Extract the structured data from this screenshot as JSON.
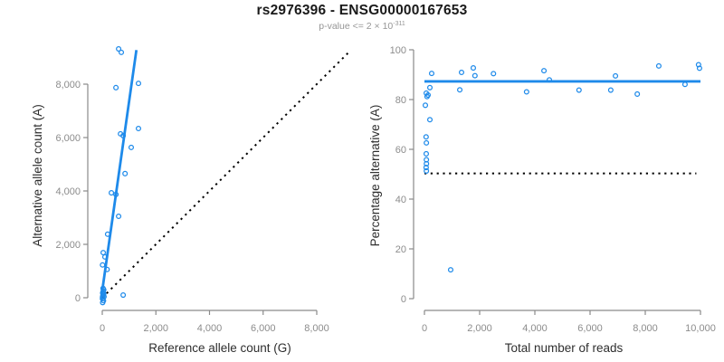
{
  "header": {
    "title": "rs2976396 - ENSG00000167653",
    "subtitle_main": "p-value <= 2 × 10",
    "subtitle_exponent": "-311"
  },
  "colors": {
    "accent_blue": "#1E8AEA",
    "reference_black": "#000000",
    "axis_gray": "#8a8a8a",
    "tick_label_gray": "#8c8c8c",
    "axis_title_dark": "#2e2e2e",
    "title_black": "#1a1a1a",
    "subtitle_gray": "#969696"
  },
  "chart_data": [
    {
      "id": "allele-counts",
      "type": "scatter",
      "xlabel": "Reference allele count (G)",
      "ylabel": "Alternative allele count (A)",
      "xlim": [
        0,
        8000
      ],
      "ylim": [
        0,
        8000
      ],
      "xticks": [
        0,
        2000,
        4000,
        6000,
        8000
      ],
      "xtick_labels": [
        "0",
        "2,000",
        "4,000",
        "6,000",
        "8,000"
      ],
      "yticks": [
        0,
        2000,
        4000,
        6000,
        8000
      ],
      "ytick_labels": [
        "0",
        "2,000",
        "4,000",
        "6,000",
        "8,000"
      ],
      "grid": false,
      "legend": "none",
      "points": [
        [
          610,
          9320
        ],
        [
          710,
          9190
        ],
        [
          510,
          7870
        ],
        [
          1350,
          8030
        ],
        [
          680,
          6140
        ],
        [
          780,
          6070
        ],
        [
          1350,
          6340
        ],
        [
          1080,
          5630
        ],
        [
          850,
          4650
        ],
        [
          340,
          3930
        ],
        [
          510,
          3870
        ],
        [
          610,
          3050
        ],
        [
          200,
          2380
        ],
        [
          35,
          1690
        ],
        [
          100,
          1530
        ],
        [
          10,
          1230
        ],
        [
          180,
          1060
        ],
        [
          780,
          100
        ],
        [
          10,
          20
        ],
        [
          25,
          70
        ],
        [
          45,
          120
        ],
        [
          15,
          180
        ],
        [
          35,
          240
        ],
        [
          55,
          300
        ],
        [
          20,
          -40
        ],
        [
          45,
          -110
        ],
        [
          65,
          40
        ],
        [
          30,
          350
        ],
        [
          55,
          160
        ],
        [
          15,
          -180
        ]
      ],
      "fit_line": {
        "style": "solid",
        "color_key": "accent_blue",
        "from": [
          -50,
          -85
        ],
        "to": [
          1273,
          9278
        ]
      },
      "identity_line": {
        "style": "dotted",
        "color_key": "reference_black",
        "from": [
          0,
          0
        ],
        "to": [
          9250,
          9250
        ]
      }
    },
    {
      "id": "percentage-alternative",
      "type": "scatter",
      "xlabel": "Total number of reads",
      "ylabel": "Percentage alternative (A)",
      "xlim": [
        0,
        10000
      ],
      "ylim": [
        0,
        100
      ],
      "xticks": [
        0,
        2000,
        4000,
        6000,
        8000,
        10000
      ],
      "xtick_labels": [
        "0",
        "2,000",
        "4,000",
        "6,000",
        "8,000",
        "10,000"
      ],
      "yticks": [
        0,
        20,
        40,
        60,
        80,
        100
      ],
      "ytick_labels": [
        "0",
        "20",
        "40",
        "60",
        "80",
        "100"
      ],
      "grid": false,
      "legend": "none",
      "points": [
        [
          262,
          90.5
        ],
        [
          197,
          84.8
        ],
        [
          66,
          82.6
        ],
        [
          131,
          81.8
        ],
        [
          95,
          81.2
        ],
        [
          33,
          77.7
        ],
        [
          197,
          71.9
        ],
        [
          60,
          65.0
        ],
        [
          70,
          62.6
        ],
        [
          65,
          58.2
        ],
        [
          70,
          55.8
        ],
        [
          72,
          54.2
        ],
        [
          62,
          52.7
        ],
        [
          70,
          51.3
        ],
        [
          950,
          11.6
        ],
        [
          1280,
          83.9
        ],
        [
          1344,
          90.9
        ],
        [
          1770,
          92.7
        ],
        [
          1830,
          89.6
        ],
        [
          2500,
          90.4
        ],
        [
          3700,
          83.1
        ],
        [
          4330,
          91.6
        ],
        [
          4525,
          87.9
        ],
        [
          5600,
          83.8
        ],
        [
          6750,
          83.8
        ],
        [
          6920,
          89.5
        ],
        [
          7710,
          82.2
        ],
        [
          8490,
          93.5
        ],
        [
          9440,
          86.1
        ],
        [
          9930,
          94.0
        ],
        [
          9965,
          92.6
        ]
      ],
      "fit_line": {
        "style": "solid",
        "color_key": "accent_blue",
        "from": [
          0,
          87.3
        ],
        "to": [
          10000,
          87.3
        ]
      },
      "identity_line": {
        "style": "dotted",
        "color_key": "reference_black",
        "from": [
          0,
          50.3
        ],
        "to": [
          9850,
          50.3
        ]
      }
    }
  ]
}
